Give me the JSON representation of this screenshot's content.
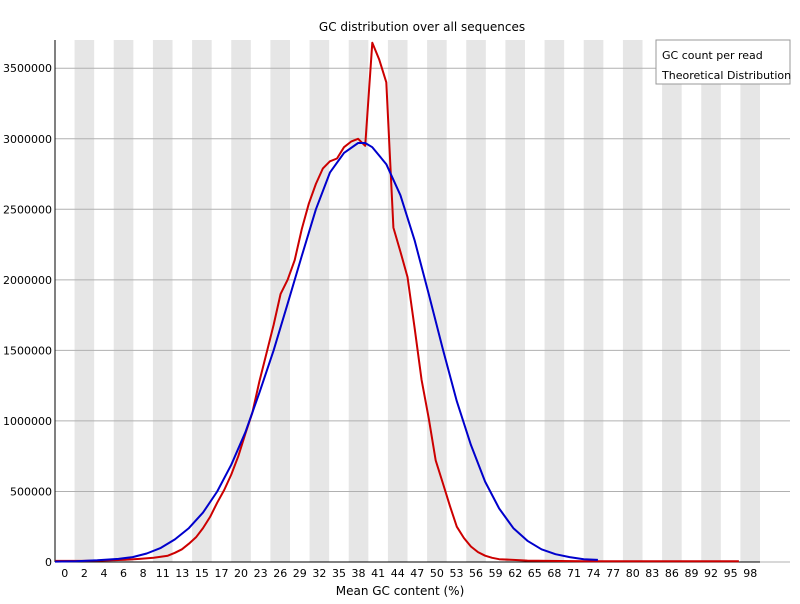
{
  "chart_data": {
    "type": "line",
    "title": "GC distribution over all sequences",
    "xlabel": "Mean GC content (%)",
    "ylabel": "",
    "xlim": [
      0,
      100
    ],
    "ylim": [
      0,
      3700000
    ],
    "grid": true,
    "legend_position": "top-right",
    "x_tick_labels": [
      "0",
      "2",
      "4",
      "6",
      "8",
      "11",
      "13",
      "15",
      "17",
      "20",
      "23",
      "26",
      "29",
      "32",
      "35",
      "38",
      "41",
      "44",
      "47",
      "50",
      "53",
      "56",
      "59",
      "62",
      "65",
      "68",
      "71",
      "74",
      "77",
      "80",
      "83",
      "86",
      "89",
      "92",
      "95",
      "98"
    ],
    "y_ticks": [
      0,
      500000,
      1000000,
      1500000,
      2000000,
      2500000,
      3000000,
      3500000
    ],
    "y_tick_labels": [
      "0",
      "500000",
      "1000000",
      "1500000",
      "2000000",
      "2500000",
      "3000000",
      "3500000"
    ],
    "series": [
      {
        "name": "GC count per read",
        "color": "#cc0000",
        "points": [
          [
            0,
            8000
          ],
          [
            2,
            8000
          ],
          [
            4,
            8000
          ],
          [
            6,
            10000
          ],
          [
            8,
            12000
          ],
          [
            10,
            16000
          ],
          [
            12,
            22000
          ],
          [
            14,
            30000
          ],
          [
            16,
            45000
          ],
          [
            17,
            65000
          ],
          [
            18,
            90000
          ],
          [
            19,
            130000
          ],
          [
            20,
            175000
          ],
          [
            21,
            240000
          ],
          [
            22,
            320000
          ],
          [
            23,
            420000
          ],
          [
            24,
            510000
          ],
          [
            25,
            620000
          ],
          [
            26,
            750000
          ],
          [
            27,
            910000
          ],
          [
            28,
            1060000
          ],
          [
            29,
            1280000
          ],
          [
            30,
            1480000
          ],
          [
            31,
            1680000
          ],
          [
            32,
            1900000
          ],
          [
            33,
            2000000
          ],
          [
            34,
            2140000
          ],
          [
            35,
            2360000
          ],
          [
            36,
            2540000
          ],
          [
            37,
            2680000
          ],
          [
            38,
            2790000
          ],
          [
            39,
            2840000
          ],
          [
            40,
            2860000
          ],
          [
            41,
            2940000
          ],
          [
            42,
            2980000
          ],
          [
            43,
            3000000
          ],
          [
            44,
            2950000
          ],
          [
            45,
            3680000
          ],
          [
            46,
            3560000
          ],
          [
            47,
            3400000
          ],
          [
            48,
            2370000
          ],
          [
            49,
            2200000
          ],
          [
            50,
            2020000
          ],
          [
            51,
            1660000
          ],
          [
            52,
            1290000
          ],
          [
            53,
            1020000
          ],
          [
            54,
            720000
          ],
          [
            55,
            560000
          ],
          [
            56,
            400000
          ],
          [
            57,
            250000
          ],
          [
            58,
            170000
          ],
          [
            59,
            110000
          ],
          [
            60,
            70000
          ],
          [
            61,
            45000
          ],
          [
            62,
            30000
          ],
          [
            63,
            20000
          ],
          [
            65,
            15000
          ],
          [
            67,
            10000
          ],
          [
            70,
            8000
          ],
          [
            75,
            6000
          ],
          [
            80,
            5000
          ],
          [
            86,
            5000
          ],
          [
            92,
            5000
          ],
          [
            97,
            5000
          ]
        ]
      },
      {
        "name": "Theoretical Distribution",
        "color": "#0000cc",
        "points": [
          [
            0,
            3000
          ],
          [
            3,
            6000
          ],
          [
            6,
            12000
          ],
          [
            9,
            22000
          ],
          [
            11,
            35000
          ],
          [
            13,
            60000
          ],
          [
            15,
            100000
          ],
          [
            17,
            160000
          ],
          [
            19,
            240000
          ],
          [
            21,
            350000
          ],
          [
            23,
            500000
          ],
          [
            25,
            690000
          ],
          [
            27,
            920000
          ],
          [
            29,
            1200000
          ],
          [
            31,
            1500000
          ],
          [
            33,
            1830000
          ],
          [
            35,
            2170000
          ],
          [
            37,
            2500000
          ],
          [
            39,
            2760000
          ],
          [
            41,
            2900000
          ],
          [
            43,
            2970000
          ],
          [
            44,
            2970000
          ],
          [
            45,
            2940000
          ],
          [
            47,
            2820000
          ],
          [
            49,
            2600000
          ],
          [
            51,
            2280000
          ],
          [
            53,
            1900000
          ],
          [
            55,
            1510000
          ],
          [
            57,
            1140000
          ],
          [
            59,
            830000
          ],
          [
            61,
            570000
          ],
          [
            63,
            380000
          ],
          [
            65,
            240000
          ],
          [
            67,
            150000
          ],
          [
            69,
            90000
          ],
          [
            71,
            55000
          ],
          [
            73,
            35000
          ],
          [
            75,
            20000
          ],
          [
            77,
            15000
          ]
        ]
      }
    ]
  }
}
